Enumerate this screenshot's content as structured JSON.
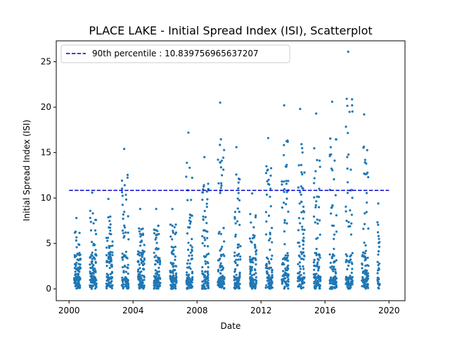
{
  "chart_data": {
    "type": "scatter",
    "title": "PLACE LAKE - Initial Spread Index (ISI), Scatterplot",
    "xlabel": "Date",
    "ylabel": "Initial Spread Index (ISI)",
    "xlim": [
      1999.2,
      2021.0
    ],
    "ylim": [
      -1.3,
      27.3
    ],
    "xticks": [
      2000,
      2004,
      2008,
      2012,
      2016,
      2020
    ],
    "yticks": [
      0,
      5,
      10,
      15,
      20,
      25
    ],
    "grid": false,
    "legend_position": "top-left",
    "point_color": "#1f77b4",
    "reference_line": {
      "label": "90th percentile : 10.839756965637207",
      "value": 10.839756965637207,
      "color": "#0000cd",
      "style": "dashed",
      "x_range": [
        2000,
        2020
      ]
    },
    "fire_seasons": [
      {
        "year": 2000,
        "start": 2000.32,
        "end": 2000.72,
        "max": 7.8
      },
      {
        "year": 2001,
        "start": 2001.3,
        "end": 2001.72,
        "max": 10.6
      },
      {
        "year": 2002,
        "start": 2002.32,
        "end": 2002.72,
        "max": 9.9
      },
      {
        "year": 2003,
        "start": 2003.3,
        "end": 2003.72,
        "max": 15.4
      },
      {
        "year": 2004,
        "start": 2004.3,
        "end": 2004.72,
        "max": 8.8
      },
      {
        "year": 2005,
        "start": 2005.3,
        "end": 2005.72,
        "max": 8.8
      },
      {
        "year": 2006,
        "start": 2006.32,
        "end": 2006.72,
        "max": 8.8
      },
      {
        "year": 2007,
        "start": 2007.32,
        "end": 2007.72,
        "max": 17.2
      },
      {
        "year": 2008,
        "start": 2008.32,
        "end": 2008.72,
        "max": 14.5
      },
      {
        "year": 2009,
        "start": 2009.3,
        "end": 2009.72,
        "max": 20.5
      },
      {
        "year": 2010,
        "start": 2010.32,
        "end": 2010.72,
        "max": 15.6
      },
      {
        "year": 2011,
        "start": 2011.3,
        "end": 2011.72,
        "max": 10.5
      },
      {
        "year": 2012,
        "start": 2012.3,
        "end": 2012.72,
        "max": 16.6
      },
      {
        "year": 2013,
        "start": 2013.3,
        "end": 2013.72,
        "max": 20.2
      },
      {
        "year": 2014,
        "start": 2014.3,
        "end": 2014.72,
        "max": 19.8
      },
      {
        "year": 2015,
        "start": 2015.3,
        "end": 2015.72,
        "max": 19.3
      },
      {
        "year": 2016,
        "start": 2016.3,
        "end": 2016.72,
        "max": 20.6
      },
      {
        "year": 2017,
        "start": 2017.3,
        "end": 2017.72,
        "max": 26.1
      },
      {
        "year": 2018,
        "start": 2018.3,
        "end": 2018.72,
        "max": 19.2
      },
      {
        "year": 2019,
        "start": 2019.28,
        "end": 2019.42,
        "max": 9.4
      }
    ]
  }
}
